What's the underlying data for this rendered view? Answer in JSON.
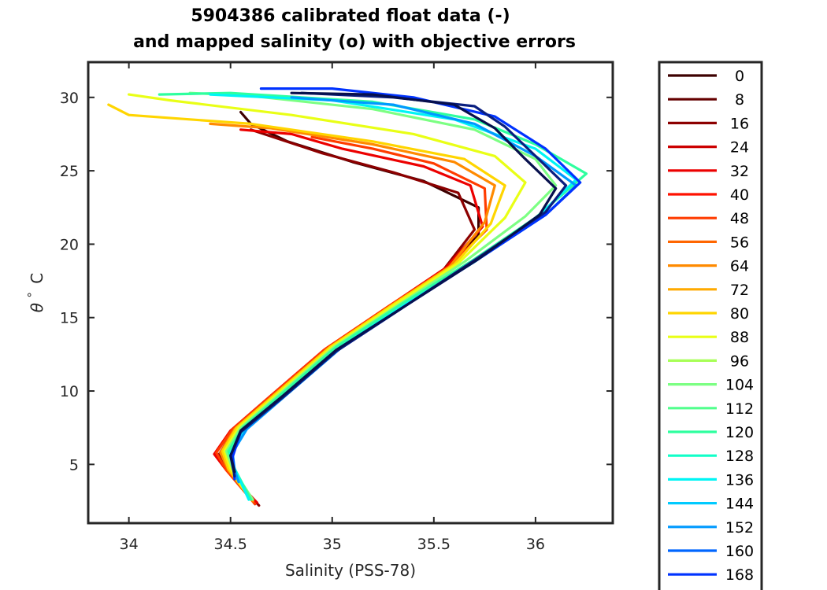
{
  "chart_data": {
    "type": "line",
    "title": [
      "5904386 calibrated float data (-)",
      "and mapped salinity (o) with objective errors"
    ],
    "xlabel": "Salinity (PSS-78)",
    "ylabel_symbol": "θ",
    "ylabel_degree": "°",
    "ylabel_unit": "C",
    "xlim": [
      33.8,
      36.38
    ],
    "ylim": [
      1.0,
      32.4
    ],
    "xticks": [
      34,
      34.5,
      35,
      35.5,
      36
    ],
    "xtick_labels": [
      "34",
      "34.5",
      "35",
      "35.5",
      "36"
    ],
    "yticks": [
      5,
      10,
      15,
      20,
      25,
      30
    ],
    "ytick_labels": [
      "5",
      "10",
      "15",
      "20",
      "25",
      "30"
    ],
    "grid": false,
    "legend_position": "outside-right",
    "legend": [
      {
        "label": "0",
        "color": "#3d0000"
      },
      {
        "label": "8",
        "color": "#650000"
      },
      {
        "label": "16",
        "color": "#8c0000"
      },
      {
        "label": "24",
        "color": "#cc0000"
      },
      {
        "label": "32",
        "color": "#ec0000"
      },
      {
        "label": "40",
        "color": "#ff1100"
      },
      {
        "label": "48",
        "color": "#ff3c00"
      },
      {
        "label": "56",
        "color": "#ff6600"
      },
      {
        "label": "64",
        "color": "#ff8a00"
      },
      {
        "label": "72",
        "color": "#ffaa00"
      },
      {
        "label": "80",
        "color": "#ffd500"
      },
      {
        "label": "88",
        "color": "#e9ff16"
      },
      {
        "label": "96",
        "color": "#a8ff57"
      },
      {
        "label": "104",
        "color": "#7cff83"
      },
      {
        "label": "112",
        "color": "#52ff8d"
      },
      {
        "label": "120",
        "color": "#2eff9f"
      },
      {
        "label": "128",
        "color": "#11ffc8"
      },
      {
        "label": "136",
        "color": "#00f5f5"
      },
      {
        "label": "144",
        "color": "#00caff"
      },
      {
        "label": "152",
        "color": "#009aff"
      },
      {
        "label": "160",
        "color": "#0066ff"
      },
      {
        "label": "168",
        "color": "#0033ff"
      }
    ],
    "series": [
      {
        "color": "#3d0000",
        "points": [
          [
            34.62,
            2.3
          ],
          [
            34.5,
            4.5
          ],
          [
            34.45,
            5.6
          ],
          [
            34.52,
            7.2
          ],
          [
            34.72,
            9.6
          ],
          [
            34.98,
            12.7
          ],
          [
            35.28,
            15.6
          ],
          [
            35.55,
            18.2
          ],
          [
            35.72,
            20.6
          ],
          [
            35.72,
            22.5
          ],
          [
            35.45,
            24.3
          ],
          [
            35.1,
            25.6
          ],
          [
            34.78,
            27.0
          ],
          [
            34.6,
            28.2
          ],
          [
            34.55,
            29.0
          ]
        ]
      },
      {
        "color": "#8c0000",
        "points": [
          [
            34.64,
            2.2
          ],
          [
            34.49,
            4.5
          ],
          [
            34.44,
            5.6
          ],
          [
            34.51,
            7.2
          ],
          [
            34.71,
            9.6
          ],
          [
            34.97,
            12.7
          ],
          [
            35.27,
            15.6
          ],
          [
            35.55,
            18.3
          ],
          [
            35.7,
            21.0
          ],
          [
            35.62,
            23.5
          ],
          [
            35.3,
            24.9
          ],
          [
            34.95,
            26.2
          ],
          [
            34.6,
            27.8
          ]
        ]
      },
      {
        "color": "#ec0000",
        "points": [
          [
            34.63,
            2.4
          ],
          [
            34.48,
            4.6
          ],
          [
            34.42,
            5.7
          ],
          [
            34.5,
            7.3
          ],
          [
            34.7,
            9.7
          ],
          [
            34.96,
            12.8
          ],
          [
            35.27,
            15.7
          ],
          [
            35.56,
            18.4
          ],
          [
            35.74,
            21.2
          ],
          [
            35.68,
            24.0
          ],
          [
            35.45,
            25.3
          ],
          [
            35.05,
            26.5
          ],
          [
            34.8,
            27.5
          ],
          [
            34.55,
            27.8
          ]
        ]
      },
      {
        "color": "#ff3c00",
        "points": [
          [
            34.62,
            2.3
          ],
          [
            34.48,
            4.6
          ],
          [
            34.43,
            5.8
          ],
          [
            34.51,
            7.4
          ],
          [
            34.71,
            9.8
          ],
          [
            34.97,
            12.9
          ],
          [
            35.28,
            15.8
          ],
          [
            35.57,
            18.4
          ],
          [
            35.76,
            21.0
          ],
          [
            35.75,
            23.8
          ],
          [
            35.5,
            25.5
          ],
          [
            35.2,
            26.5
          ],
          [
            34.9,
            27.3
          ]
        ]
      },
      {
        "color": "#ff8a00",
        "points": [
          [
            34.61,
            2.5
          ],
          [
            34.49,
            4.6
          ],
          [
            34.45,
            5.8
          ],
          [
            34.52,
            7.4
          ],
          [
            34.72,
            9.8
          ],
          [
            34.98,
            12.9
          ],
          [
            35.29,
            15.8
          ],
          [
            35.58,
            18.5
          ],
          [
            35.75,
            21.5
          ],
          [
            35.8,
            24.0
          ],
          [
            35.6,
            25.6
          ],
          [
            35.2,
            26.8
          ],
          [
            34.7,
            27.9
          ],
          [
            34.4,
            28.2
          ]
        ]
      },
      {
        "color": "#ffd500",
        "points": [
          [
            34.6,
            2.6
          ],
          [
            34.49,
            4.7
          ],
          [
            34.46,
            5.9
          ],
          [
            34.53,
            7.5
          ],
          [
            34.73,
            9.9
          ],
          [
            34.99,
            13.0
          ],
          [
            35.3,
            15.9
          ],
          [
            35.6,
            18.6
          ],
          [
            35.78,
            21.4
          ],
          [
            35.85,
            24.0
          ],
          [
            35.65,
            25.8
          ],
          [
            35.2,
            27.0
          ],
          [
            34.6,
            28.2
          ],
          [
            34.0,
            28.8
          ],
          [
            33.9,
            29.5
          ]
        ]
      },
      {
        "color": "#e9ff16",
        "points": [
          [
            34.6,
            2.6
          ],
          [
            34.5,
            4.7
          ],
          [
            34.47,
            5.9
          ],
          [
            34.54,
            7.5
          ],
          [
            34.74,
            9.9
          ],
          [
            35.0,
            13.0
          ],
          [
            35.31,
            15.9
          ],
          [
            35.62,
            18.7
          ],
          [
            35.85,
            21.8
          ],
          [
            35.95,
            24.2
          ],
          [
            35.8,
            26.0
          ],
          [
            35.4,
            27.5
          ],
          [
            34.8,
            28.8
          ],
          [
            34.2,
            29.8
          ],
          [
            34.0,
            30.2
          ]
        ]
      },
      {
        "color": "#7cff83",
        "points": [
          [
            34.61,
            2.6
          ],
          [
            34.51,
            4.7
          ],
          [
            34.48,
            5.9
          ],
          [
            34.55,
            7.5
          ],
          [
            34.75,
            9.9
          ],
          [
            35.01,
            13.0
          ],
          [
            35.33,
            15.9
          ],
          [
            35.65,
            18.8
          ],
          [
            35.95,
            21.9
          ],
          [
            36.1,
            24.0
          ],
          [
            36.0,
            25.8
          ],
          [
            35.7,
            27.8
          ],
          [
            35.2,
            29.2
          ],
          [
            34.6,
            30.1
          ],
          [
            34.3,
            30.3
          ]
        ]
      },
      {
        "color": "#2eff9f",
        "points": [
          [
            34.6,
            2.6
          ],
          [
            34.52,
            4.7
          ],
          [
            34.49,
            5.9
          ],
          [
            34.56,
            7.5
          ],
          [
            34.76,
            9.9
          ],
          [
            35.02,
            13.0
          ],
          [
            35.35,
            16.0
          ],
          [
            35.68,
            18.8
          ],
          [
            36.0,
            21.8
          ],
          [
            36.25,
            24.8
          ],
          [
            36.0,
            26.8
          ],
          [
            35.7,
            28.5
          ],
          [
            35.2,
            29.7
          ],
          [
            34.5,
            30.3
          ],
          [
            34.15,
            30.2
          ]
        ]
      },
      {
        "color": "#00f5f5",
        "points": [
          [
            34.59,
            2.6
          ],
          [
            34.52,
            4.7
          ],
          [
            34.5,
            5.8
          ],
          [
            34.57,
            7.4
          ],
          [
            34.77,
            9.8
          ],
          [
            35.03,
            12.9
          ],
          [
            35.36,
            15.9
          ],
          [
            35.7,
            18.8
          ],
          [
            36.02,
            22.0
          ],
          [
            36.2,
            24.4
          ],
          [
            36.0,
            26.5
          ],
          [
            35.6,
            28.5
          ],
          [
            35.0,
            29.8
          ],
          [
            34.4,
            30.2
          ]
        ]
      },
      {
        "color": "#009aff",
        "points": [
          [
            34.54,
            3.8
          ],
          [
            34.52,
            4.6
          ],
          [
            34.51,
            5.8
          ],
          [
            34.58,
            7.4
          ],
          [
            34.78,
            9.8
          ],
          [
            35.04,
            12.9
          ],
          [
            35.37,
            15.9
          ],
          [
            35.72,
            19.0
          ],
          [
            36.05,
            22.0
          ],
          [
            36.2,
            24.0
          ],
          [
            36.0,
            26.0
          ],
          [
            35.7,
            28.2
          ],
          [
            35.3,
            29.5
          ],
          [
            34.8,
            30.0
          ]
        ]
      },
      {
        "color": "#0033ff",
        "points": [
          [
            34.52,
            4.0
          ],
          [
            34.51,
            5.5
          ],
          [
            34.55,
            7.2
          ],
          [
            34.76,
            9.6
          ],
          [
            35.02,
            12.7
          ],
          [
            35.36,
            15.8
          ],
          [
            35.72,
            19.0
          ],
          [
            36.05,
            22.0
          ],
          [
            36.22,
            24.2
          ],
          [
            36.05,
            26.5
          ],
          [
            35.8,
            28.7
          ],
          [
            35.4,
            30.0
          ],
          [
            35.0,
            30.6
          ],
          [
            34.65,
            30.6
          ]
        ]
      },
      {
        "color": "#0a1f80",
        "points": [
          [
            34.52,
            4.2
          ],
          [
            34.5,
            5.6
          ],
          [
            34.55,
            7.2
          ],
          [
            34.76,
            9.6
          ],
          [
            35.02,
            12.7
          ],
          [
            35.36,
            15.8
          ],
          [
            35.72,
            19.1
          ],
          [
            36.05,
            22.2
          ],
          [
            36.15,
            24.0
          ],
          [
            36.0,
            26.0
          ],
          [
            35.85,
            28.0
          ],
          [
            35.7,
            29.4
          ],
          [
            35.3,
            30.0
          ],
          [
            34.85,
            30.3
          ]
        ]
      },
      {
        "color": "#07104d",
        "points": [
          [
            34.52,
            4.5
          ],
          [
            34.5,
            5.6
          ],
          [
            34.55,
            7.3
          ],
          [
            34.76,
            9.7
          ],
          [
            35.02,
            12.8
          ],
          [
            35.36,
            15.8
          ],
          [
            35.72,
            19.0
          ],
          [
            36.02,
            22.0
          ],
          [
            36.1,
            23.8
          ],
          [
            35.95,
            25.8
          ],
          [
            35.8,
            27.9
          ],
          [
            35.6,
            29.5
          ],
          [
            35.2,
            30.2
          ],
          [
            34.8,
            30.3
          ]
        ]
      }
    ]
  }
}
